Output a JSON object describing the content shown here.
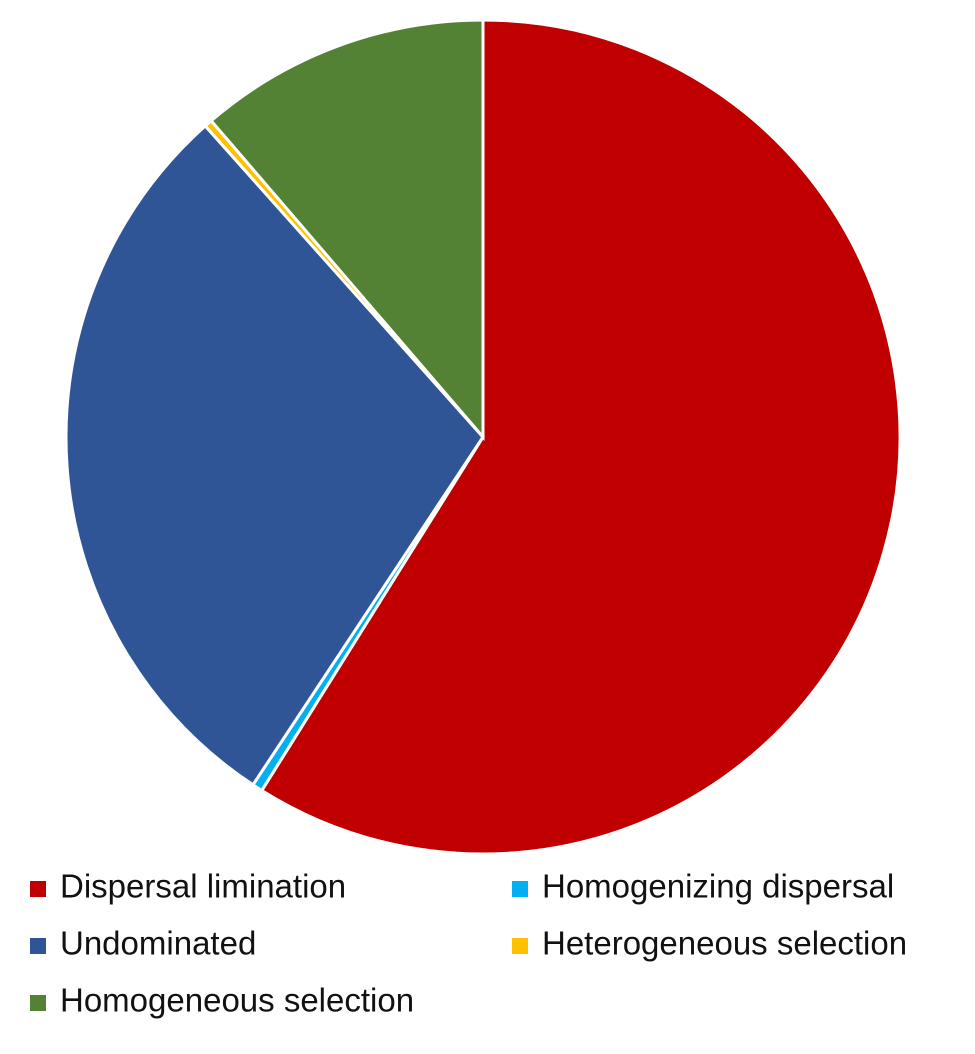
{
  "chart_data": {
    "type": "pie",
    "categories": [
      "Dispersal limination",
      "Homogenizing dispersal",
      "Undominated",
      "Heterogeneous selection",
      "Homogeneous selection"
    ],
    "values": [
      58.9,
      0.4,
      29.1,
      0.3,
      11.3
    ],
    "colors": [
      "#c00000",
      "#00b0f0",
      "#2f5597",
      "#ffc000",
      "#548235"
    ]
  }
}
